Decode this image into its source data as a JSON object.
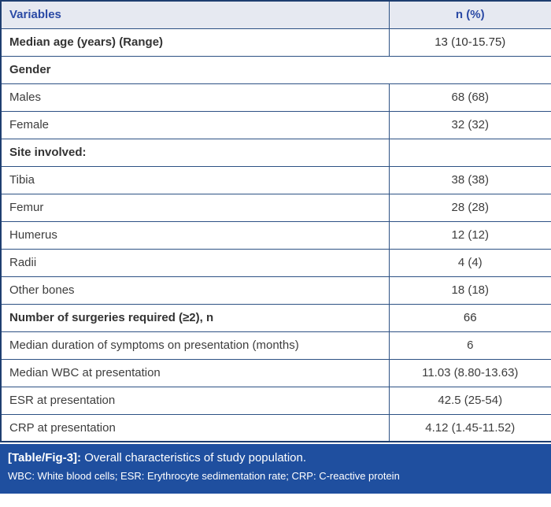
{
  "table": {
    "header": {
      "variables": "Variables",
      "n_pct": "n (%)"
    },
    "rows": [
      {
        "label": "Median age (years) (Range)",
        "value": "13 (10-15.75)",
        "bold": true,
        "span": false
      },
      {
        "label": "Gender",
        "value": "",
        "bold": true,
        "span": true
      },
      {
        "label": "Males",
        "value": "68 (68)",
        "bold": false,
        "span": false
      },
      {
        "label": "Female",
        "value": "32 (32)",
        "bold": false,
        "span": false
      },
      {
        "label": "Site involved:",
        "value": "",
        "bold": true,
        "span": false
      },
      {
        "label": "Tibia",
        "value": "38 (38)",
        "bold": false,
        "span": false
      },
      {
        "label": "Femur",
        "value": "28 (28)",
        "bold": false,
        "span": false
      },
      {
        "label": "Humerus",
        "value": "12 (12)",
        "bold": false,
        "span": false
      },
      {
        "label": "Radii",
        "value": "4 (4)",
        "bold": false,
        "span": false
      },
      {
        "label": "Other bones",
        "value": "18 (18)",
        "bold": false,
        "span": false
      },
      {
        "label": "Number of surgeries required (≥2), n",
        "value": "66",
        "bold": true,
        "span": false
      },
      {
        "label": "Median duration of symptoms on presentation (months)",
        "value": "6",
        "bold": false,
        "span": false
      },
      {
        "label": "Median WBC at presentation",
        "value": "11.03 (8.80-13.63)",
        "bold": false,
        "span": false
      },
      {
        "label": "ESR at presentation",
        "value": "42.5 (25-54)",
        "bold": false,
        "span": false
      },
      {
        "label": "CRP at presentation",
        "value": "4.12 (1.45-11.52)",
        "bold": false,
        "span": false
      }
    ]
  },
  "caption": {
    "tag": "[Table/Fig-3]:",
    "text": " Overall characteristics of study population.",
    "abbreviations": "WBC: White blood cells; ESR: Erythrocyte sedimentation rate; CRP: C-reactive protein"
  },
  "colors": {
    "border_inner": "#2d5184",
    "border_outer": "#1e3e70",
    "header_bg": "#e6e9f1",
    "header_text": "#2b4aa5",
    "caption_bg": "#1f4f9f",
    "caption_text": "#ffffff",
    "body_text": "#3d3d3d"
  },
  "chart_data": {
    "type": "table",
    "title": "[Table/Fig-3]: Overall characteristics of study population.",
    "columns": [
      "Variables",
      "n (%)"
    ],
    "rows": [
      [
        "Median age (years) (Range)",
        "13 (10-15.75)"
      ],
      [
        "Gender",
        ""
      ],
      [
        "Males",
        "68 (68)"
      ],
      [
        "Female",
        "32 (32)"
      ],
      [
        "Site involved:",
        ""
      ],
      [
        "Tibia",
        "38 (38)"
      ],
      [
        "Femur",
        "28 (28)"
      ],
      [
        "Humerus",
        "12 (12)"
      ],
      [
        "Radii",
        "4 (4)"
      ],
      [
        "Other bones",
        "18 (18)"
      ],
      [
        "Number of surgeries required (≥2), n",
        "66"
      ],
      [
        "Median duration of symptoms on presentation (months)",
        "6"
      ],
      [
        "Median WBC at presentation",
        "11.03 (8.80-13.63)"
      ],
      [
        "ESR at presentation",
        "42.5 (25-54)"
      ],
      [
        "CRP at presentation",
        "4.12 (1.45-11.52)"
      ]
    ]
  }
}
